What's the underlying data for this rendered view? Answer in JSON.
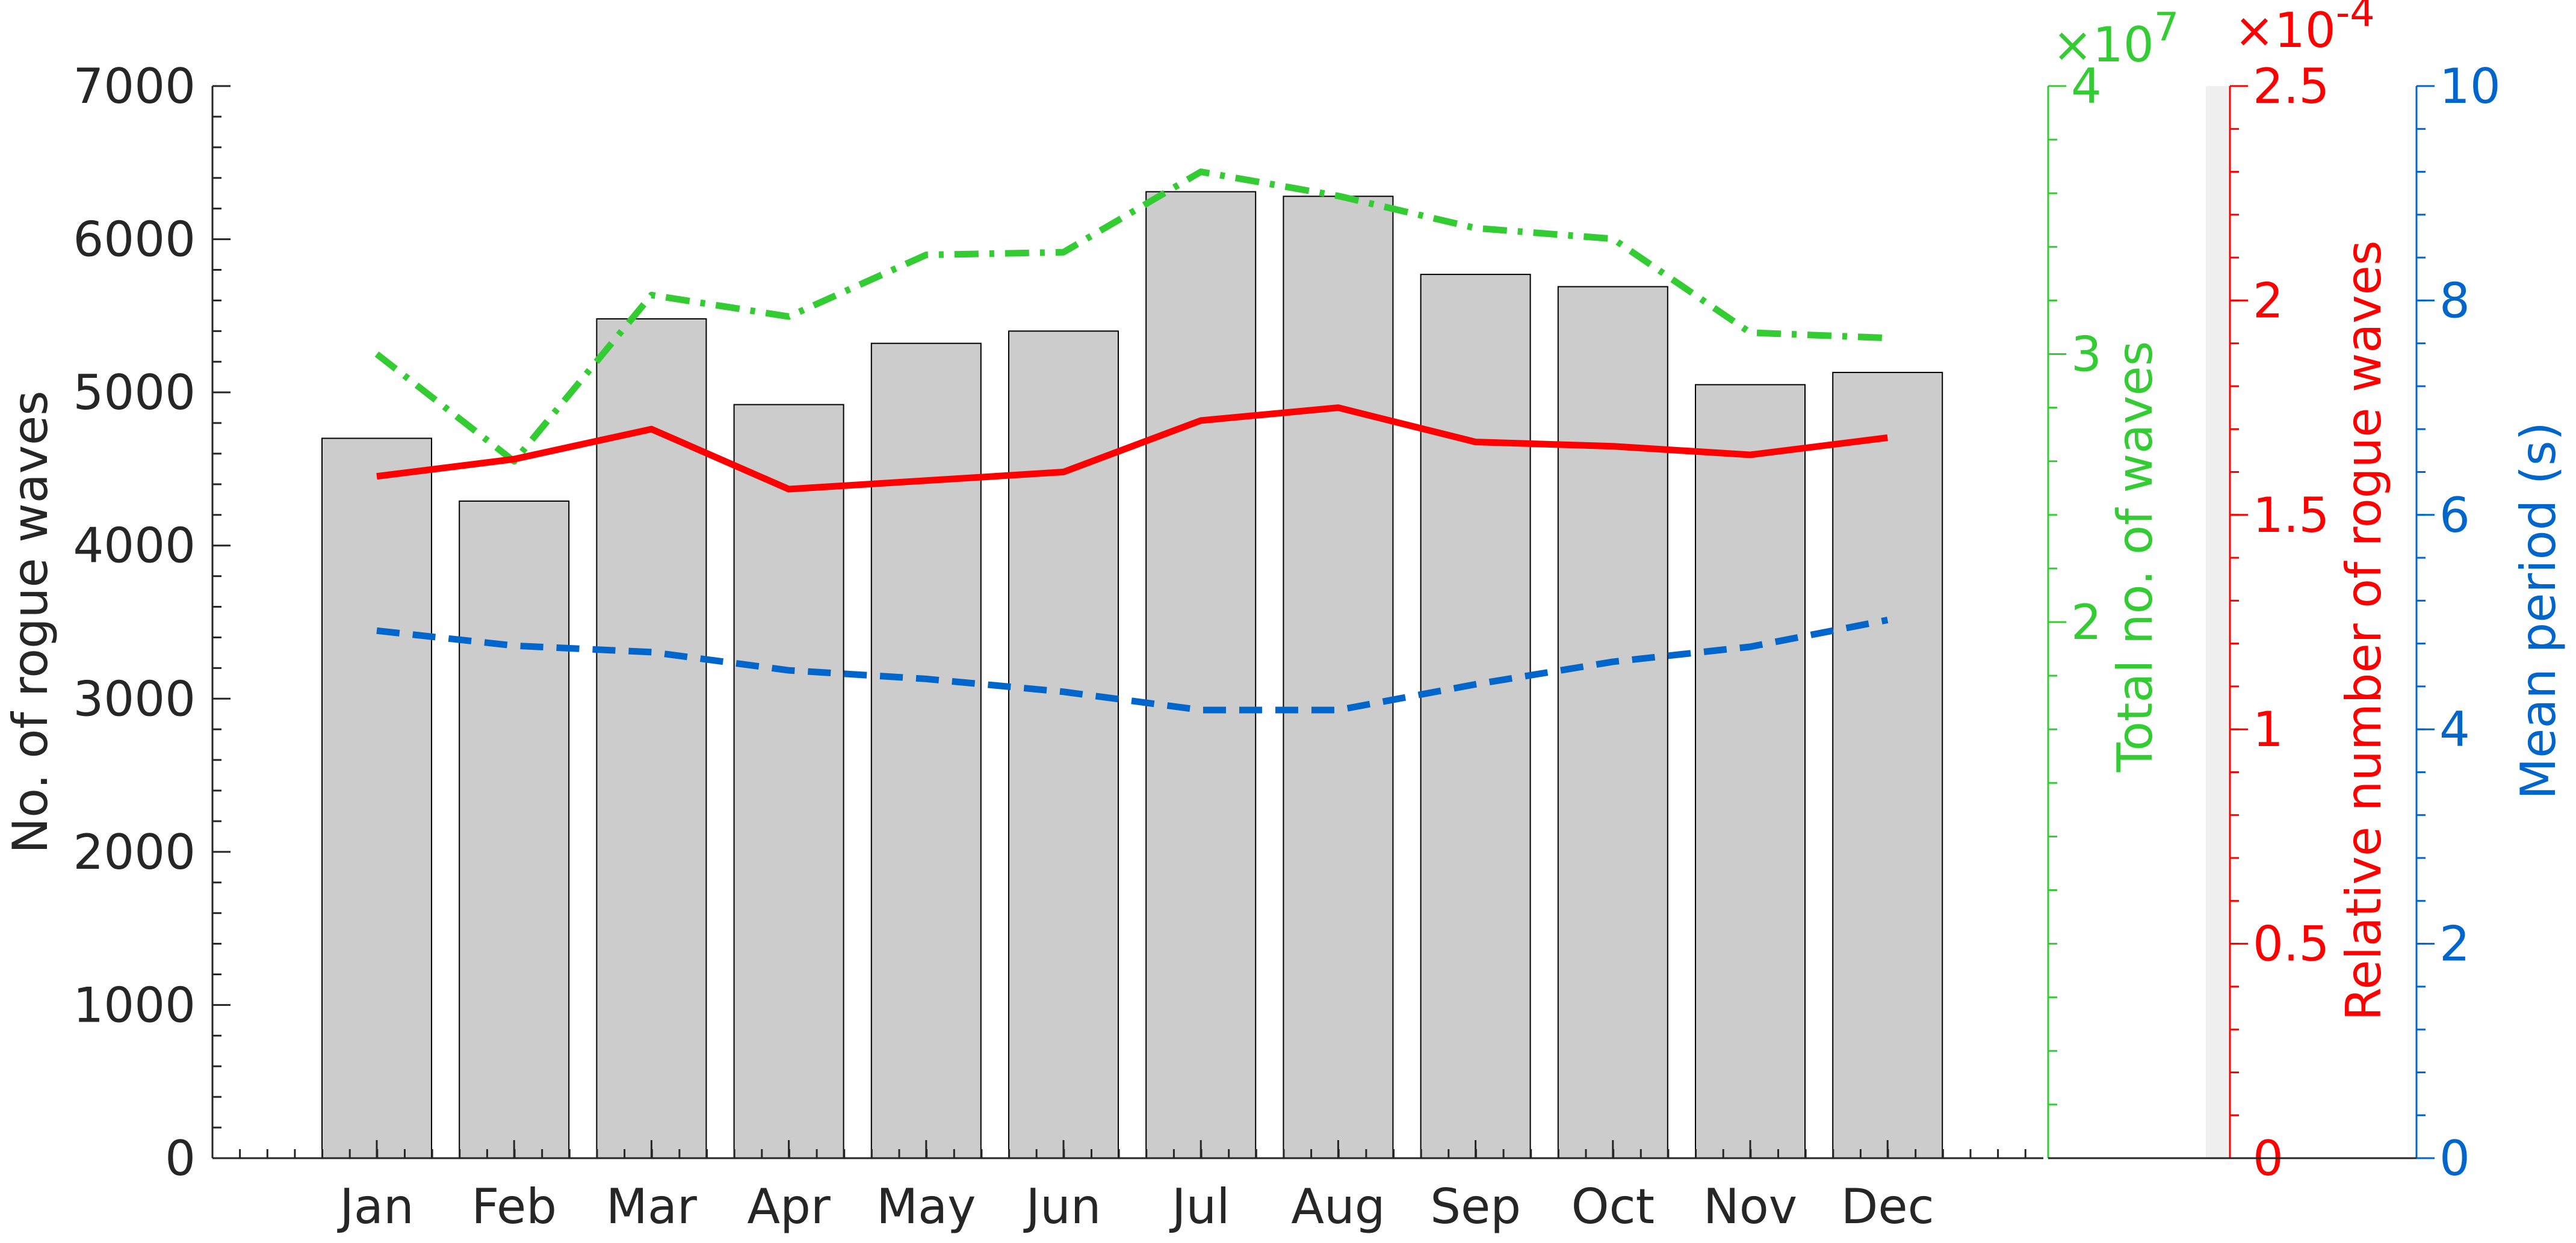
{
  "chart_data": {
    "type": "bar",
    "categories": [
      "Jan",
      "Feb",
      "Mar",
      "Apr",
      "May",
      "Jun",
      "Jul",
      "Aug",
      "Sep",
      "Oct",
      "Nov",
      "Dec"
    ],
    "bars": {
      "values": [
        4700,
        4290,
        5480,
        4920,
        5320,
        5400,
        6310,
        6280,
        5770,
        5690,
        5050,
        5130
      ],
      "color": "#cccccc"
    },
    "series": [
      {
        "axis": "total",
        "style": "dash-dot",
        "color": "#33cc33",
        "values": [
          3.0,
          2.6,
          3.22,
          3.14,
          3.37,
          3.38,
          3.68,
          3.59,
          3.47,
          3.43,
          3.08,
          3.06
        ]
      },
      {
        "axis": "relative",
        "style": "solid",
        "color": "#ff0000",
        "values": [
          1.59,
          1.63,
          1.7,
          1.56,
          1.58,
          1.6,
          1.72,
          1.75,
          1.67,
          1.66,
          1.64,
          1.68
        ]
      },
      {
        "axis": "period",
        "style": "dashed",
        "color": "#0066cc",
        "values": [
          4.92,
          4.78,
          4.72,
          4.55,
          4.47,
          4.35,
          4.18,
          4.18,
          4.42,
          4.63,
          4.77,
          5.02
        ]
      }
    ],
    "axes": {
      "left": {
        "label": "No. of rogue waves",
        "ylim": [
          0,
          7000
        ],
        "ticks": [
          "0",
          "1000",
          "2000",
          "3000",
          "4000",
          "5000",
          "6000",
          "7000"
        ],
        "color": "#262626"
      },
      "total": {
        "label": "Total no. of waves",
        "ylim": [
          0,
          4
        ],
        "ticks": [
          "2",
          "3",
          "4"
        ],
        "multiplier_mark": "×",
        "multiplier_base": "10",
        "multiplier_exp": "7",
        "color": "#33cc33"
      },
      "relative": {
        "label": "Relative number of rogue waves",
        "ylim": [
          0,
          2.5
        ],
        "ticks": [
          "0",
          "0.5",
          "1",
          "1.5",
          "2",
          "2.5"
        ],
        "multiplier_mark": "×",
        "multiplier_base": "10",
        "multiplier_exp": "-4",
        "color": "#ff0000"
      },
      "period": {
        "label": "Mean period (s)",
        "ylim": [
          0,
          10
        ],
        "ticks": [
          "0",
          "2",
          "4",
          "6",
          "8",
          "10"
        ],
        "color": "#0066cc"
      }
    },
    "grid": false,
    "legend": "none"
  }
}
